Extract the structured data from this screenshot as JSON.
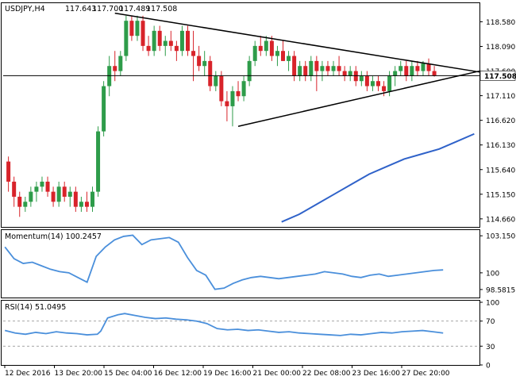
{
  "chart_data": [
    {
      "type": "candlestick",
      "header": {
        "symbol": "USDJPY,H4",
        "open": "117.643",
        "high": "117.700",
        "low": "117.489",
        "close": "117.508"
      },
      "price_label": "117.508",
      "price_line_value": 117.508,
      "ylim": [
        114.5,
        118.95
      ],
      "y_ticks": [
        {
          "v": 118.58,
          "label": "118.580"
        },
        {
          "v": 118.09,
          "label": "118.090"
        },
        {
          "v": 117.6,
          "label": "117.600"
        },
        {
          "v": 117.11,
          "label": "117.110"
        },
        {
          "v": 116.62,
          "label": "116.620"
        },
        {
          "v": 116.13,
          "label": "116.130"
        },
        {
          "v": 115.64,
          "label": "115.640"
        },
        {
          "v": 115.15,
          "label": "115.150"
        },
        {
          "v": 114.66,
          "label": "114.660"
        }
      ],
      "x_labels": [
        "12 Dec 2016",
        "13 Dec 20:00",
        "15 Dec 04:00",
        "16 Dec 12:00",
        "19 Dec 16:00",
        "21 Dec 00:00",
        "22 Dec 08:00",
        "23 Dec 16:00",
        "27 Dec 20:00"
      ],
      "x_label_positions": [
        0,
        15,
        30,
        45,
        60,
        75,
        90,
        105,
        120
      ],
      "x_count": 136,
      "bull_color": "#2e9c4a",
      "bear_color": "#d8232a",
      "candles": [
        [
          115.8,
          115.9,
          115.2,
          115.4
        ],
        [
          115.4,
          115.5,
          114.9,
          115.1
        ],
        [
          115.1,
          115.2,
          114.7,
          114.9
        ],
        [
          114.9,
          115.1,
          114.8,
          115.0
        ],
        [
          115.0,
          115.3,
          114.9,
          115.2
        ],
        [
          115.2,
          115.4,
          115.0,
          115.3
        ],
        [
          115.3,
          115.5,
          115.2,
          115.4
        ],
        [
          115.4,
          115.5,
          115.1,
          115.2
        ],
        [
          115.2,
          115.3,
          114.9,
          115.0
        ],
        [
          115.0,
          115.4,
          114.9,
          115.3
        ],
        [
          115.3,
          115.4,
          115.0,
          115.1
        ],
        [
          115.1,
          115.3,
          114.9,
          115.2
        ],
        [
          115.2,
          115.3,
          114.8,
          114.9
        ],
        [
          114.9,
          115.1,
          114.8,
          115.0
        ],
        [
          115.0,
          115.2,
          114.8,
          114.9
        ],
        [
          114.9,
          115.3,
          114.8,
          115.2
        ],
        [
          115.2,
          116.5,
          115.1,
          116.4
        ],
        [
          116.4,
          117.4,
          116.3,
          117.3
        ],
        [
          117.3,
          117.9,
          117.1,
          117.7
        ],
        [
          117.7,
          118.0,
          117.4,
          117.6
        ],
        [
          117.6,
          118.0,
          117.5,
          117.9
        ],
        [
          117.9,
          118.7,
          117.8,
          118.6
        ],
        [
          118.6,
          118.7,
          118.2,
          118.3
        ],
        [
          118.3,
          118.7,
          118.2,
          118.6
        ],
        [
          118.6,
          118.7,
          118.0,
          118.1
        ],
        [
          118.1,
          118.3,
          117.9,
          118.0
        ],
        [
          118.0,
          118.5,
          117.9,
          118.4
        ],
        [
          118.4,
          118.5,
          118.0,
          118.1
        ],
        [
          118.1,
          118.3,
          117.9,
          118.2
        ],
        [
          118.2,
          118.4,
          118.0,
          118.1
        ],
        [
          118.1,
          118.2,
          117.8,
          118.0
        ],
        [
          118.0,
          118.5,
          117.9,
          118.4
        ],
        [
          118.4,
          118.5,
          117.9,
          118.0
        ],
        [
          118.0,
          118.4,
          117.4,
          117.9
        ],
        [
          117.9,
          118.1,
          117.6,
          117.7
        ],
        [
          117.7,
          118.0,
          117.5,
          117.8
        ],
        [
          117.8,
          117.9,
          117.2,
          117.3
        ],
        [
          117.3,
          117.6,
          117.2,
          117.5
        ],
        [
          117.5,
          117.6,
          116.9,
          117.0
        ],
        [
          117.0,
          117.2,
          116.6,
          116.9
        ],
        [
          116.9,
          117.3,
          116.5,
          117.2
        ],
        [
          117.2,
          117.4,
          117.0,
          117.1
        ],
        [
          117.1,
          117.5,
          117.0,
          117.4
        ],
        [
          117.4,
          117.9,
          117.3,
          117.8
        ],
        [
          117.8,
          118.2,
          117.7,
          118.1
        ],
        [
          118.1,
          118.3,
          117.9,
          118.0
        ],
        [
          118.0,
          118.3,
          117.9,
          118.2
        ],
        [
          118.2,
          118.3,
          117.8,
          117.9
        ],
        [
          117.9,
          118.1,
          117.7,
          118.0
        ],
        [
          118.0,
          118.2,
          117.8,
          117.8
        ],
        [
          117.8,
          118.0,
          117.6,
          117.9
        ],
        [
          117.9,
          118.0,
          117.4,
          117.5
        ],
        [
          117.5,
          117.8,
          117.4,
          117.7
        ],
        [
          117.7,
          117.8,
          117.4,
          117.5
        ],
        [
          117.5,
          117.9,
          117.4,
          117.8
        ],
        [
          117.8,
          117.9,
          117.2,
          117.6
        ],
        [
          117.6,
          117.8,
          117.4,
          117.7
        ],
        [
          117.7,
          117.8,
          117.5,
          117.6
        ],
        [
          117.6,
          117.8,
          117.5,
          117.7
        ],
        [
          117.7,
          117.9,
          117.5,
          117.6
        ],
        [
          117.6,
          117.7,
          117.4,
          117.5
        ],
        [
          117.5,
          117.7,
          117.4,
          117.6
        ],
        [
          117.6,
          117.7,
          117.3,
          117.4
        ],
        [
          117.4,
          117.6,
          117.3,
          117.5
        ],
        [
          117.5,
          117.6,
          117.2,
          117.3
        ],
        [
          117.3,
          117.5,
          117.2,
          117.4
        ],
        [
          117.4,
          117.5,
          117.2,
          117.3
        ],
        [
          117.3,
          117.4,
          117.1,
          117.2
        ],
        [
          117.2,
          117.6,
          117.1,
          117.5
        ],
        [
          117.5,
          117.7,
          117.3,
          117.6
        ],
        [
          117.6,
          117.8,
          117.5,
          117.7
        ],
        [
          117.7,
          117.8,
          117.4,
          117.5
        ],
        [
          117.5,
          117.8,
          117.4,
          117.7
        ],
        [
          117.7,
          117.8,
          117.5,
          117.6
        ],
        [
          117.6,
          117.8,
          117.5,
          117.75
        ],
        [
          117.75,
          117.85,
          117.5,
          117.6
        ],
        [
          117.6,
          117.7,
          117.489,
          117.508
        ]
      ],
      "trendlines": [
        {
          "name": "resistance",
          "from": [
            19,
            118.75
          ],
          "to": [
            135,
            117.58
          ]
        },
        {
          "name": "support",
          "from": [
            41,
            116.5
          ],
          "to": [
            135,
            117.6
          ]
        }
      ],
      "moving_average": {
        "color": "#2f62c9",
        "points": [
          [
            79,
            114.6
          ],
          [
            84,
            114.75
          ],
          [
            89,
            114.95
          ],
          [
            94,
            115.15
          ],
          [
            99,
            115.35
          ],
          [
            104,
            115.55
          ],
          [
            109,
            115.7
          ],
          [
            114,
            115.85
          ],
          [
            119,
            115.95
          ],
          [
            124,
            116.05
          ],
          [
            129,
            116.2
          ],
          [
            134,
            116.35
          ]
        ]
      }
    },
    {
      "type": "line",
      "title": "Momentum(14) 100.2457",
      "ylim": [
        97.9,
        103.5
      ],
      "y_ticks": [
        {
          "v": 103.1506,
          "label": "103.1506"
        },
        {
          "v": 100,
          "label": "100"
        },
        {
          "v": 98.5815,
          "label": "98.5815"
        }
      ],
      "color": "#4a8fdb",
      "x_count": 136,
      "values": [
        102.2,
        101.2,
        100.8,
        100.9,
        100.6,
        100.3,
        100.1,
        100.0,
        99.6,
        99.2,
        101.4,
        102.2,
        102.8,
        103.1,
        103.2,
        102.4,
        102.8,
        102.9,
        103.0,
        102.6,
        101.3,
        100.2,
        99.8,
        98.6,
        98.7,
        99.1,
        99.4,
        99.6,
        99.7,
        99.6,
        99.5,
        99.6,
        99.7,
        99.8,
        99.9,
        100.1,
        100.0,
        99.9,
        99.7,
        99.6,
        99.8,
        99.9,
        99.7,
        99.8,
        99.9,
        100.0,
        100.1,
        100.2,
        100.25
      ],
      "x": [
        0,
        3,
        6,
        9,
        12,
        15,
        18,
        21,
        24,
        27,
        30,
        33,
        36,
        39,
        42,
        45,
        48,
        51,
        54,
        57,
        60,
        63,
        66,
        69,
        72,
        75,
        78,
        81,
        84,
        87,
        90,
        93,
        96,
        99,
        102,
        105,
        108,
        111,
        114,
        117,
        120,
        123,
        126,
        129,
        132,
        135,
        138,
        141,
        144
      ]
    },
    {
      "type": "line",
      "title": "RSI(14) 51.0495",
      "ylim": [
        0,
        100
      ],
      "y_ticks": [
        {
          "v": 100,
          "label": "100"
        },
        {
          "v": 70,
          "label": "70"
        },
        {
          "v": 30,
          "label": "30"
        },
        {
          "v": 0,
          "label": "0"
        }
      ],
      "levels": [
        70,
        30
      ],
      "color": "#4a8fdb",
      "x_count": 136,
      "values": [
        55,
        51,
        49,
        52,
        50,
        53,
        51,
        50,
        48,
        49,
        54,
        75,
        80,
        82,
        79,
        76,
        74,
        75,
        73,
        72,
        70,
        66,
        58,
        56,
        57,
        55,
        56,
        54,
        52,
        53,
        51,
        50,
        49,
        48,
        47,
        49,
        48,
        50,
        52,
        51,
        53,
        54,
        55,
        53,
        51
      ],
      "x": [
        0,
        3,
        6,
        9,
        12,
        15,
        18,
        21,
        24,
        27,
        28,
        30,
        33,
        35,
        38,
        41,
        44,
        47,
        50,
        53,
        56,
        59,
        62,
        65,
        68,
        71,
        74,
        77,
        80,
        83,
        86,
        89,
        92,
        95,
        98,
        101,
        104,
        107,
        110,
        113,
        116,
        119,
        122,
        125,
        128
      ]
    }
  ]
}
